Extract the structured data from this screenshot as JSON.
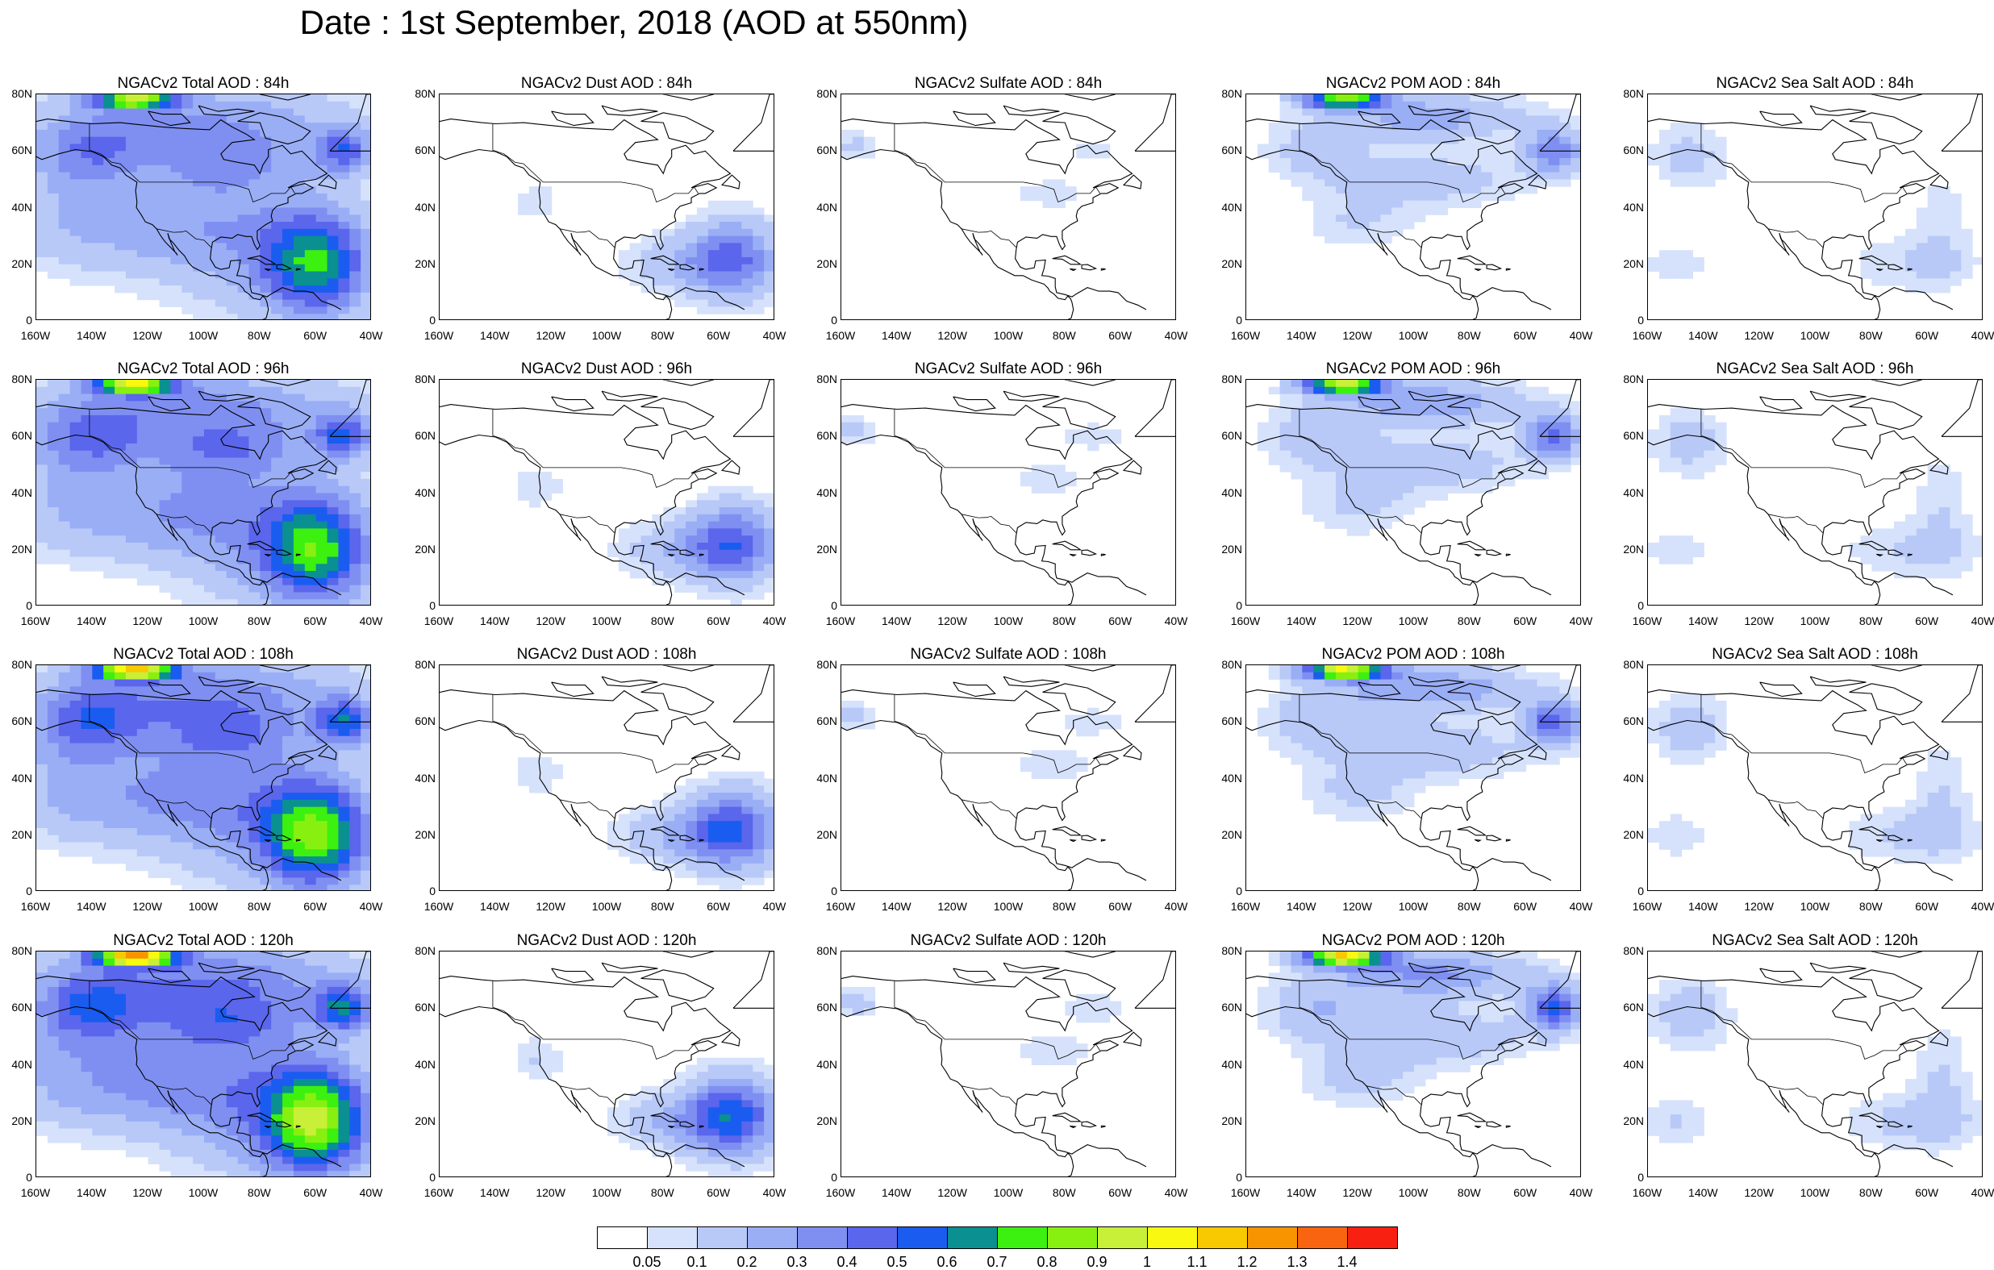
{
  "title": "Date : 1st September, 2018 (AOD at 550nm)",
  "rows": [
    {
      "panels": [
        {
          "title": "NGACv2 Total AOD : 84h",
          "field": "total",
          "hour": 84
        },
        {
          "title": "NGACv2 Dust AOD : 84h",
          "field": "dust",
          "hour": 84
        },
        {
          "title": "NGACv2 Sulfate AOD : 84h",
          "field": "sulfate",
          "hour": 84
        },
        {
          "title": "NGACv2 POM AOD : 84h",
          "field": "pom",
          "hour": 84
        },
        {
          "title": "NGACv2 Sea Salt AOD : 84h",
          "field": "seasalt",
          "hour": 84
        }
      ]
    },
    {
      "panels": [
        {
          "title": "NGACv2 Total AOD : 96h",
          "field": "total",
          "hour": 96
        },
        {
          "title": "NGACv2 Dust AOD : 96h",
          "field": "dust",
          "hour": 96
        },
        {
          "title": "NGACv2 Sulfate AOD : 96h",
          "field": "sulfate",
          "hour": 96
        },
        {
          "title": "NGACv2 POM AOD : 96h",
          "field": "pom",
          "hour": 96
        },
        {
          "title": "NGACv2 Sea Salt AOD : 96h",
          "field": "seasalt",
          "hour": 96
        }
      ]
    },
    {
      "panels": [
        {
          "title": "NGACv2 Total AOD : 108h",
          "field": "total",
          "hour": 108
        },
        {
          "title": "NGACv2 Dust AOD : 108h",
          "field": "dust",
          "hour": 108
        },
        {
          "title": "NGACv2 Sulfate AOD : 108h",
          "field": "sulfate",
          "hour": 108
        },
        {
          "title": "NGACv2 POM AOD : 108h",
          "field": "pom",
          "hour": 108
        },
        {
          "title": "NGACv2 Sea Salt AOD : 108h",
          "field": "seasalt",
          "hour": 108
        }
      ]
    },
    {
      "panels": [
        {
          "title": "NGACv2 Total AOD : 120h",
          "field": "total",
          "hour": 120
        },
        {
          "title": "NGACv2 Dust AOD : 120h",
          "field": "dust",
          "hour": 120
        },
        {
          "title": "NGACv2 Sulfate AOD : 120h",
          "field": "sulfate",
          "hour": 120
        },
        {
          "title": "NGACv2 POM AOD : 120h",
          "field": "pom",
          "hour": 120
        },
        {
          "title": "NGACv2 Sea Salt  AOD : 120h",
          "field": "seasalt",
          "hour": 120
        }
      ]
    }
  ],
  "axes": {
    "lat_labels": [
      "80N",
      "60N",
      "40N",
      "20N",
      "0"
    ],
    "lon_labels": [
      "160W",
      "140W",
      "120W",
      "100W",
      "80W",
      "60W",
      "40W"
    ],
    "lon_range": [
      -160,
      -40
    ],
    "lat_range": [
      0,
      80
    ]
  },
  "colorbar": {
    "labels": [
      "0.05",
      "0.1",
      "0.2",
      "0.3",
      "0.4",
      "0.5",
      "0.6",
      "0.7",
      "0.8",
      "0.9",
      "1",
      "1.1",
      "1.2",
      "1.3",
      "1.4"
    ],
    "colors": [
      "#ffffff",
      "#d6e2fb",
      "#b8c9f8",
      "#9aaef6",
      "#7f8ff1",
      "#5a66ec",
      "#1a5cf0",
      "#0a9090",
      "#3cf010",
      "#88f010",
      "#c8f038",
      "#f8f810",
      "#f8c800",
      "#f89400",
      "#f86410",
      "#f82010"
    ]
  }
}
